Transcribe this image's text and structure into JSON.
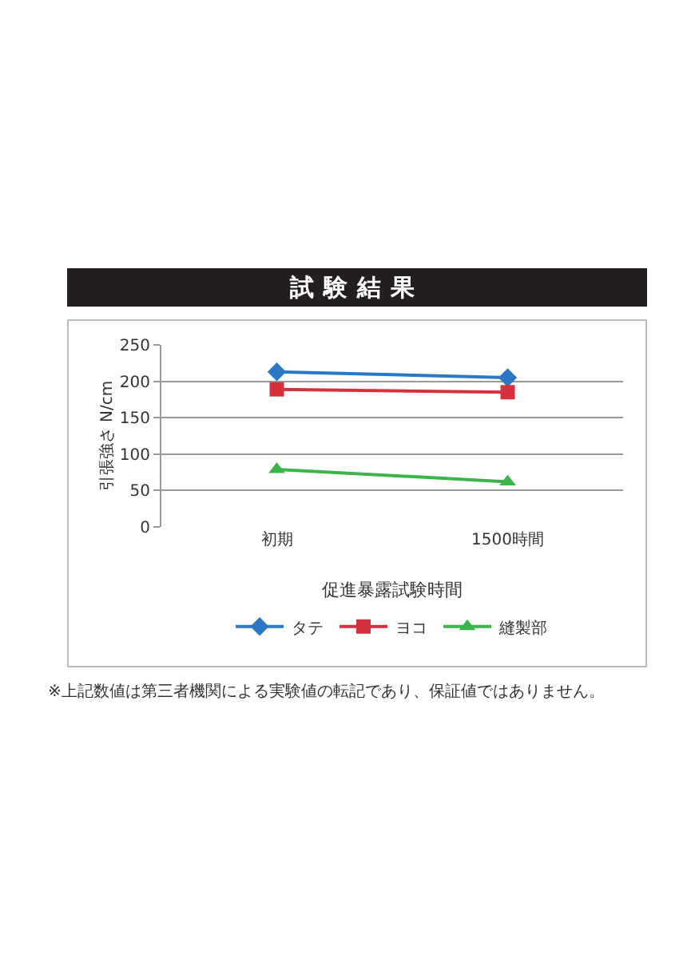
{
  "chart_data": {
    "type": "line",
    "title": "試験結果",
    "ylabel": "引張強さ N/cm",
    "xlabel": "促進暴露試験時間",
    "categories": [
      "初期",
      "1500時間"
    ],
    "series": [
      {
        "name": "タテ",
        "color": "#2b78c5",
        "marker": "diamond",
        "values": [
          213,
          205
        ]
      },
      {
        "name": "ヨコ",
        "color": "#d3323c",
        "marker": "square",
        "values": [
          189,
          185
        ]
      },
      {
        "name": "縫製部",
        "color": "#3cb44b",
        "marker": "triangle",
        "values": [
          79,
          62
        ]
      }
    ],
    "ylim": [
      0,
      250
    ],
    "yticks": [
      0,
      50,
      100,
      150,
      200,
      250
    ],
    "grid": "y",
    "legend": "bottom",
    "line_style": "solid",
    "annotations": [
      "※上記数値は第三者機関による実験値の転記であり、保証値ではありません。"
    ]
  }
}
